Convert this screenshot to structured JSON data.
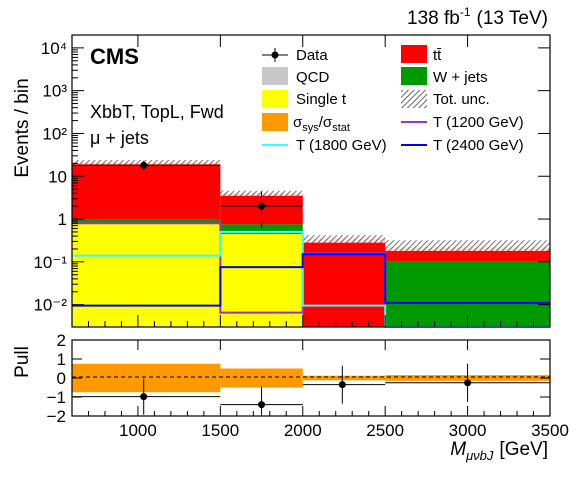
{
  "header": {
    "lumi": "138 fb",
    "lumi_sup": "-1",
    "energy": "(13 TeV)",
    "experiment": "CMS"
  },
  "labels": {
    "category": "XbbT, TopL, Fwd",
    "channel": "μ + jets"
  },
  "legend": {
    "data": "Data",
    "ttbar": "tt̄",
    "qcd": "QCD",
    "wjets": "W + jets",
    "single_t": "Single t",
    "tot_unc": "Tot. unc.",
    "sys_stat_main": "σ",
    "sys_stat_sub1": "sys",
    "sys_stat_slash": "/σ",
    "sys_stat_sub2": "stat",
    "t1200": "T (1200 GeV)",
    "t1800": "T (1800 GeV)",
    "t2400": "T (2400 GeV)"
  },
  "colors": {
    "ttbar": "#ff0000",
    "wjets": "#009900",
    "qcd": "#c8c8c8",
    "single_t": "#ffff00",
    "sys_stat": "#ff9900",
    "t1200": "#9933cc",
    "t1800": "#33ffff",
    "t2400": "#0000ff"
  },
  "chart_data": [
    {
      "type": "bar",
      "stacked": true,
      "log_y": true,
      "ylabel": "Events / bin",
      "ylim": [
        0.003,
        20000
      ],
      "xlim": [
        600,
        3500
      ],
      "bin_edges": [
        600,
        1500,
        2000,
        2500,
        3500
      ],
      "y_tick_labels": [
        "10⁻²",
        "10⁻¹",
        "1",
        "10",
        "10²",
        "10³",
        "10⁴"
      ],
      "y_tick_values": [
        0.01,
        0.1,
        1,
        10,
        100,
        1000,
        10000
      ],
      "series": [
        {
          "name": "Single t",
          "values": [
            0.8,
            0.45,
            0.0,
            0.0
          ]
        },
        {
          "name": "QCD",
          "values": [
            0.0,
            0.0,
            0.0,
            0.0
          ]
        },
        {
          "name": "W + jets",
          "values": [
            0.2,
            0.3,
            0.0,
            0.1
          ]
        },
        {
          "name": "tt̄",
          "values": [
            20,
            3.3,
            0.35,
            0.12
          ]
        }
      ],
      "total_uncertainty_band": {
        "low": [
          19,
          3.5,
          0.28,
          0.18
        ],
        "high": [
          24,
          4.6,
          0.42,
          0.32
        ]
      },
      "signals": [
        {
          "name": "T (1200 GeV)",
          "values": [
            0.8,
            0.0065,
            0.16,
            0.011
          ]
        },
        {
          "name": "T (1800 GeV)",
          "values": [
            0.14,
            0.5,
            0.0095,
            0.003
          ]
        },
        {
          "name": "T (2400 GeV)",
          "values": [
            0.0095,
            0.075,
            0.15,
            0.011
          ]
        }
      ],
      "data": {
        "x": [
          1035,
          1750
        ],
        "y": [
          18,
          2.0
        ],
        "y_err_low": [
          4,
          1.4
        ],
        "y_err_high": [
          5,
          2.4
        ],
        "x_err_low": [
          435,
          250
        ],
        "x_err_high": [
          465,
          250
        ]
      }
    },
    {
      "type": "bar",
      "ylabel": "Pull",
      "xlabel": "M",
      "xlabel_sub": "μνbJ",
      "xlabel_unit": "[GeV]",
      "xlim": [
        600,
        3500
      ],
      "ylim": [
        -2,
        2
      ],
      "x_tick_labels": [
        "1000",
        "1500",
        "2000",
        "2500",
        "3000",
        "3500"
      ],
      "x_tick_values": [
        1000,
        1500,
        2000,
        2500,
        3000,
        3500
      ],
      "y_tick_labels": [
        "−2",
        "−1",
        "0",
        "1",
        "2"
      ],
      "y_tick_values": [
        -2,
        -1,
        0,
        1,
        2
      ],
      "bin_edges": [
        600,
        1500,
        2000,
        2500,
        3500
      ],
      "sys_stat_band": [
        0.75,
        0.5,
        0.12,
        0.15
      ],
      "pulls": {
        "x": [
          1035,
          1750,
          2240,
          3000
        ],
        "y": [
          -0.98,
          -1.4,
          -0.35,
          -0.25
        ],
        "err": [
          0.95,
          0.95,
          1.0,
          1.0
        ],
        "x_err_low": [
          435,
          250,
          240,
          500
        ],
        "x_err_high": [
          465,
          250,
          260,
          500
        ]
      }
    }
  ]
}
